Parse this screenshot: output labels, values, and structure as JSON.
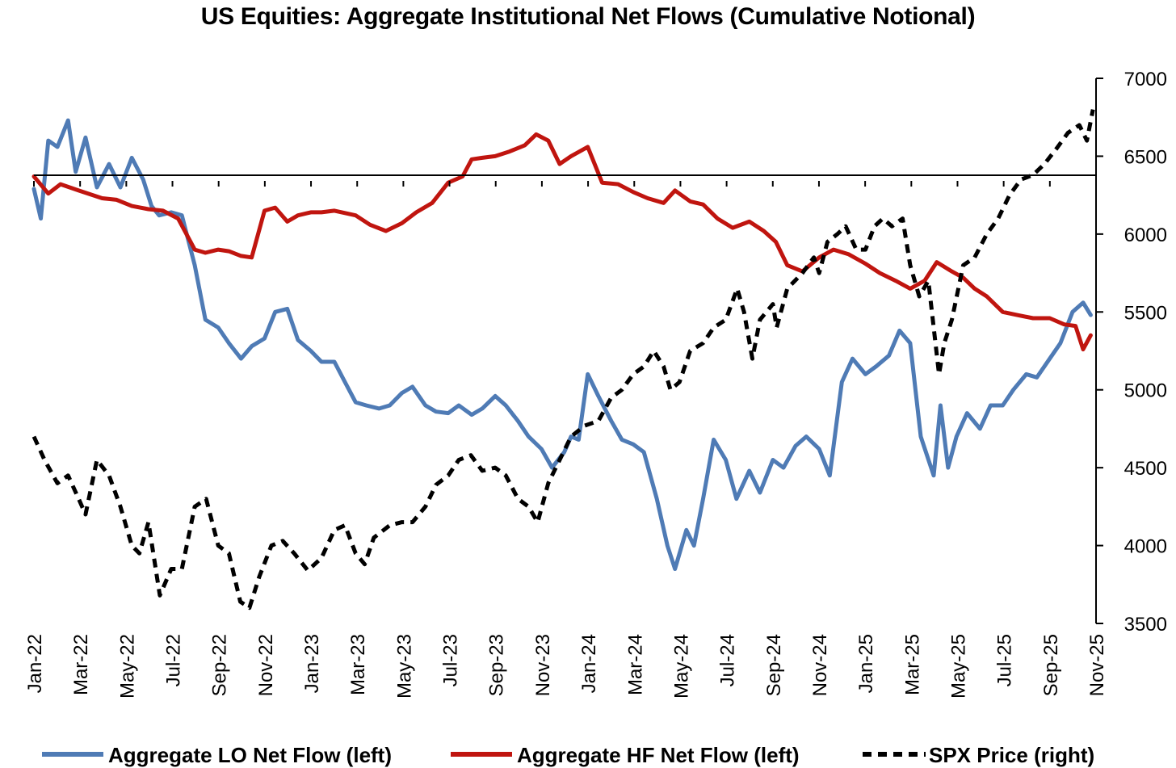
{
  "chart_data": {
    "type": "line",
    "title": "US Equities: Aggregate Institutional Net Flows (Cumulative Notional)",
    "xlabel": "",
    "ylabel": "",
    "x_tick_labels": [
      "Jan-22",
      "Mar-22",
      "May-22",
      "Jul-22",
      "Sep-22",
      "Nov-22",
      "Jan-23",
      "Mar-23",
      "May-23",
      "Jul-23",
      "Sep-23",
      "Nov-23",
      "Jan-24",
      "Mar-24",
      "May-24",
      "Jul-24",
      "Sep-24",
      "Nov-24",
      "Jan-25",
      "Mar-25",
      "May-25",
      "Jul-25",
      "Sep-25",
      "Nov-25"
    ],
    "xlim": [
      "2022-01-01",
      "2025-11-01"
    ],
    "y_right": {
      "ylim": [
        3500,
        7000
      ],
      "ticks": [
        3500,
        4000,
        4500,
        5000,
        5500,
        6000,
        6500,
        7000
      ]
    },
    "y_left": {
      "ticks_shown": false,
      "note_level": 0
    },
    "grid": false,
    "legend_position": "bottom",
    "series": [
      {
        "name": "Aggregate LO Net Flow (left)",
        "axis": "left",
        "color": "#4f7bb5",
        "style": "solid",
        "x": [
          "2022-01-01",
          "2022-01-10",
          "2022-01-20",
          "2022-02-01",
          "2022-02-15",
          "2022-02-25",
          "2022-03-10",
          "2022-03-25",
          "2022-04-10",
          "2022-04-25",
          "2022-05-10",
          "2022-05-25",
          "2022-06-05",
          "2022-06-15",
          "2022-07-01",
          "2022-07-15",
          "2022-08-01",
          "2022-08-15",
          "2022-09-01",
          "2022-09-15",
          "2022-10-01",
          "2022-10-15",
          "2022-11-01",
          "2022-11-15",
          "2022-12-01",
          "2022-12-15",
          "2023-01-01",
          "2023-01-15",
          "2023-02-01",
          "2023-02-15",
          "2023-03-01",
          "2023-03-15",
          "2023-04-01",
          "2023-04-15",
          "2023-05-01",
          "2023-05-15",
          "2023-06-01",
          "2023-06-15",
          "2023-07-01",
          "2023-07-15",
          "2023-08-01",
          "2023-08-15",
          "2023-09-01",
          "2023-09-15",
          "2023-10-01",
          "2023-10-15",
          "2023-11-01",
          "2023-11-15",
          "2023-12-01",
          "2023-12-10",
          "2023-12-20",
          "2024-01-01",
          "2024-01-15",
          "2024-02-01",
          "2024-02-15",
          "2024-03-01",
          "2024-03-15",
          "2024-04-01",
          "2024-04-15",
          "2024-04-25",
          "2024-05-10",
          "2024-05-20",
          "2024-06-01",
          "2024-06-15",
          "2024-07-01",
          "2024-07-15",
          "2024-08-01",
          "2024-08-15",
          "2024-09-01",
          "2024-09-15",
          "2024-10-01",
          "2024-10-15",
          "2024-11-01",
          "2024-11-15",
          "2024-12-01",
          "2024-12-15",
          "2025-01-01",
          "2025-01-15",
          "2025-02-01",
          "2025-02-15",
          "2025-03-01",
          "2025-03-15",
          "2025-04-01",
          "2025-04-10",
          "2025-04-20",
          "2025-05-01",
          "2025-05-15",
          "2025-06-01",
          "2025-06-15",
          "2025-07-01",
          "2025-07-15",
          "2025-08-01",
          "2025-08-15",
          "2025-09-01",
          "2025-09-15",
          "2025-10-01",
          "2025-10-15",
          "2025-10-25"
        ],
        "values": [
          6290,
          6100,
          6600,
          6560,
          6730,
          6400,
          6620,
          6300,
          6450,
          6300,
          6490,
          6350,
          6180,
          6120,
          6140,
          6120,
          5800,
          5450,
          5400,
          5300,
          5200,
          5280,
          5330,
          5500,
          5520,
          5320,
          5250,
          5180,
          5180,
          5050,
          4920,
          4900,
          4880,
          4900,
          4980,
          5020,
          4900,
          4860,
          4850,
          4900,
          4840,
          4880,
          4960,
          4900,
          4800,
          4700,
          4620,
          4500,
          4600,
          4700,
          4680,
          5100,
          4960,
          4800,
          4680,
          4650,
          4600,
          4300,
          4000,
          3850,
          4100,
          4000,
          4300,
          4680,
          4550,
          4300,
          4480,
          4340,
          4550,
          4500,
          4640,
          4700,
          4620,
          4450,
          5050,
          5200,
          5100,
          5150,
          5220,
          5380,
          5300,
          4700,
          4450,
          4900,
          4500,
          4700,
          4850,
          4750,
          4900,
          4900,
          5000,
          5100,
          5080,
          5200,
          5300,
          5500,
          5560,
          5480
        ]
      },
      {
        "name": "Aggregate HF Net Flow (left)",
        "axis": "left",
        "color": "#c0150f",
        "style": "solid",
        "x": [
          "2022-01-01",
          "2022-01-20",
          "2022-02-05",
          "2022-03-01",
          "2022-04-01",
          "2022-04-20",
          "2022-05-10",
          "2022-06-01",
          "2022-06-20",
          "2022-07-10",
          "2022-08-01",
          "2022-08-15",
          "2022-09-01",
          "2022-09-15",
          "2022-10-01",
          "2022-10-15",
          "2022-11-01",
          "2022-11-15",
          "2022-12-01",
          "2022-12-15",
          "2023-01-01",
          "2023-01-15",
          "2023-02-01",
          "2023-03-01",
          "2023-03-20",
          "2023-04-10",
          "2023-05-01",
          "2023-05-20",
          "2023-06-10",
          "2023-07-01",
          "2023-07-20",
          "2023-08-01",
          "2023-08-15",
          "2023-09-01",
          "2023-09-20",
          "2023-10-10",
          "2023-10-25",
          "2023-11-10",
          "2023-11-25",
          "2023-12-10",
          "2024-01-01",
          "2024-01-20",
          "2024-02-10",
          "2024-03-01",
          "2024-03-20",
          "2024-04-10",
          "2024-04-25",
          "2024-05-15",
          "2024-06-01",
          "2024-06-20",
          "2024-07-10",
          "2024-08-01",
          "2024-08-20",
          "2024-09-05",
          "2024-09-20",
          "2024-10-10",
          "2024-11-01",
          "2024-11-20",
          "2024-12-10",
          "2025-01-01",
          "2025-01-20",
          "2025-02-10",
          "2025-03-01",
          "2025-03-20",
          "2025-04-05",
          "2025-04-25",
          "2025-05-10",
          "2025-05-25",
          "2025-06-10",
          "2025-07-01",
          "2025-07-20",
          "2025-08-10",
          "2025-09-01",
          "2025-09-20",
          "2025-10-05",
          "2025-10-15",
          "2025-10-25"
        ],
        "values": [
          6370,
          6260,
          6320,
          6280,
          6230,
          6220,
          6180,
          6160,
          6150,
          6100,
          5900,
          5880,
          5900,
          5890,
          5860,
          5850,
          6150,
          6170,
          6080,
          6120,
          6140,
          6140,
          6150,
          6120,
          6060,
          6020,
          6070,
          6140,
          6200,
          6330,
          6370,
          6480,
          6490,
          6500,
          6530,
          6570,
          6640,
          6600,
          6450,
          6500,
          6560,
          6330,
          6320,
          6270,
          6230,
          6200,
          6280,
          6210,
          6190,
          6100,
          6040,
          6080,
          6020,
          5950,
          5800,
          5760,
          5850,
          5900,
          5870,
          5810,
          5750,
          5700,
          5650,
          5700,
          5820,
          5760,
          5720,
          5650,
          5600,
          5500,
          5480,
          5460,
          5460,
          5420,
          5410,
          5260,
          5350
        ]
      },
      {
        "name": "SPX Price (right)",
        "axis": "right",
        "color": "#000000",
        "style": "dashed",
        "x": [
          "2022-01-01",
          "2022-01-15",
          "2022-02-01",
          "2022-02-15",
          "2022-03-01",
          "2022-03-10",
          "2022-03-25",
          "2022-04-10",
          "2022-04-25",
          "2022-05-10",
          "2022-05-20",
          "2022-06-01",
          "2022-06-16",
          "2022-07-01",
          "2022-07-15",
          "2022-08-01",
          "2022-08-16",
          "2022-09-01",
          "2022-09-15",
          "2022-09-30",
          "2022-10-12",
          "2022-10-25",
          "2022-11-10",
          "2022-11-25",
          "2022-12-10",
          "2022-12-28",
          "2023-01-15",
          "2023-02-01",
          "2023-02-15",
          "2023-03-01",
          "2023-03-13",
          "2023-03-25",
          "2023-04-15",
          "2023-05-01",
          "2023-05-15",
          "2023-06-01",
          "2023-06-15",
          "2023-07-01",
          "2023-07-15",
          "2023-07-31",
          "2023-08-15",
          "2023-09-01",
          "2023-09-15",
          "2023-10-01",
          "2023-10-15",
          "2023-10-27",
          "2023-11-10",
          "2023-11-25",
          "2023-12-10",
          "2023-12-28",
          "2024-01-15",
          "2024-02-01",
          "2024-02-15",
          "2024-03-01",
          "2024-03-15",
          "2024-03-28",
          "2024-04-10",
          "2024-04-19",
          "2024-05-01",
          "2024-05-15",
          "2024-06-01",
          "2024-06-15",
          "2024-07-01",
          "2024-07-16",
          "2024-07-25",
          "2024-08-05",
          "2024-08-15",
          "2024-09-01",
          "2024-09-06",
          "2024-09-20",
          "2024-10-10",
          "2024-10-25",
          "2024-11-01",
          "2024-11-12",
          "2024-11-25",
          "2024-12-06",
          "2024-12-20",
          "2025-01-01",
          "2025-01-13",
          "2025-01-24",
          "2025-02-05",
          "2025-02-19",
          "2025-03-01",
          "2025-03-13",
          "2025-03-25",
          "2025-04-08",
          "2025-04-15",
          "2025-04-25",
          "2025-05-10",
          "2025-05-25",
          "2025-06-10",
          "2025-06-25",
          "2025-07-10",
          "2025-07-25",
          "2025-08-10",
          "2025-08-25",
          "2025-09-10",
          "2025-09-25",
          "2025-10-10",
          "2025-10-20",
          "2025-10-28"
        ],
        "values": [
          4700,
          4550,
          4400,
          4450,
          4300,
          4200,
          4550,
          4450,
          4250,
          4000,
          3950,
          4150,
          3680,
          3850,
          3850,
          4250,
          4300,
          4000,
          3950,
          3640,
          3600,
          3800,
          4000,
          4030,
          3950,
          3840,
          3920,
          4100,
          4130,
          3950,
          3880,
          4050,
          4130,
          4150,
          4150,
          4250,
          4390,
          4450,
          4550,
          4580,
          4480,
          4500,
          4450,
          4300,
          4250,
          4150,
          4400,
          4550,
          4700,
          4770,
          4800,
          4950,
          5000,
          5100,
          5150,
          5250,
          5150,
          5000,
          5050,
          5250,
          5300,
          5400,
          5450,
          5650,
          5500,
          5200,
          5450,
          5550,
          5400,
          5650,
          5750,
          5850,
          5750,
          5950,
          6000,
          6050,
          5900,
          5900,
          6050,
          6100,
          6050,
          6100,
          5800,
          5600,
          5700,
          5100,
          5300,
          5450,
          5800,
          5850,
          6000,
          6100,
          6250,
          6350,
          6380,
          6450,
          6550,
          6650,
          6700,
          6600,
          6800
        ]
      }
    ],
    "reference_lines": [
      {
        "axis": "left",
        "level": 0,
        "color": "#000000"
      }
    ]
  }
}
